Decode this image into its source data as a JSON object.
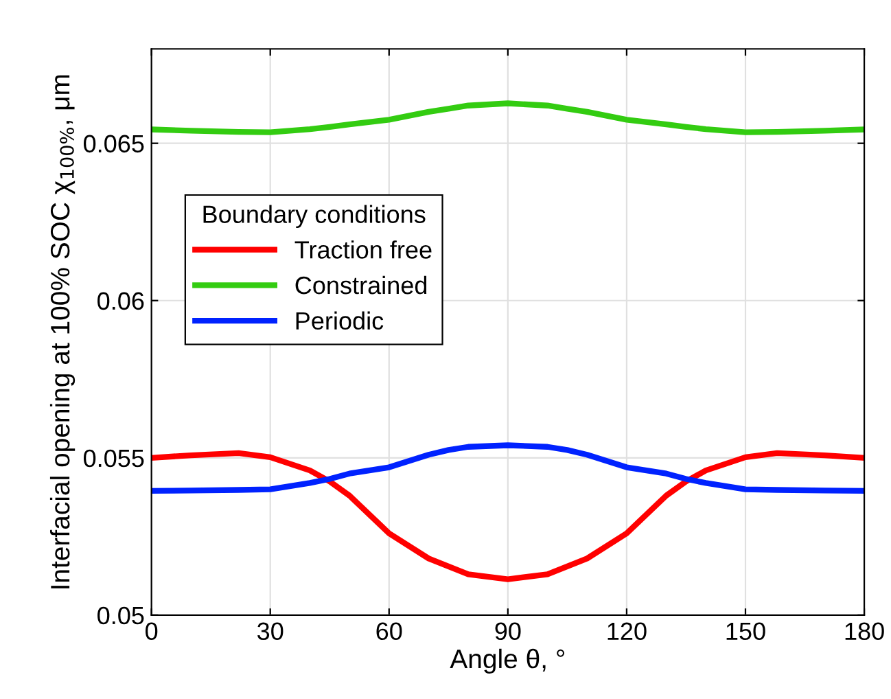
{
  "chart_data": {
    "type": "line",
    "xlabel": "Angle θ, °",
    "ylabel": "Interfacial opening at 100% SOC χ$_{100%}$, μm",
    "legend_title": "Boundary conditions",
    "x": [
      0,
      10,
      22,
      30,
      40,
      45,
      50,
      60,
      70,
      75,
      80,
      90,
      100,
      105,
      110,
      120,
      130,
      135,
      140,
      150,
      158,
      170,
      180
    ],
    "series": [
      {
        "name": "Traction free",
        "color": "#ff0000",
        "values": [
          0.055,
          0.05508,
          0.05515,
          0.05502,
          0.0546,
          0.05425,
          0.0538,
          0.0526,
          0.0518,
          0.05155,
          0.0513,
          0.05114,
          0.0513,
          0.05155,
          0.0518,
          0.0526,
          0.0538,
          0.05425,
          0.0546,
          0.05502,
          0.05515,
          0.05508,
          0.055
        ]
      },
      {
        "name": "Constrained",
        "color": "#33cc11",
        "values": [
          0.06544,
          0.0654,
          0.06536,
          0.06535,
          0.06545,
          0.06552,
          0.0656,
          0.06575,
          0.066,
          0.0661,
          0.0662,
          0.06627,
          0.0662,
          0.0661,
          0.066,
          0.06575,
          0.0656,
          0.06552,
          0.06545,
          0.06535,
          0.06536,
          0.0654,
          0.06544
        ]
      },
      {
        "name": "Periodic",
        "color": "#0022ff",
        "values": [
          0.05395,
          0.05396,
          0.05398,
          0.054,
          0.0542,
          0.05433,
          0.0545,
          0.0547,
          0.0551,
          0.05525,
          0.05535,
          0.0554,
          0.05535,
          0.05525,
          0.0551,
          0.0547,
          0.0545,
          0.05433,
          0.0542,
          0.054,
          0.05398,
          0.05396,
          0.05395
        ]
      }
    ],
    "xlim": [
      0,
      180
    ],
    "xticks": [
      0,
      30,
      60,
      90,
      120,
      150,
      180
    ],
    "ylim": [
      0.05,
      0.068
    ],
    "yticks": [
      0.05,
      0.055,
      0.06,
      0.065
    ],
    "grid": true,
    "legend": "left",
    "marker": "none",
    "line_style": "solid"
  }
}
